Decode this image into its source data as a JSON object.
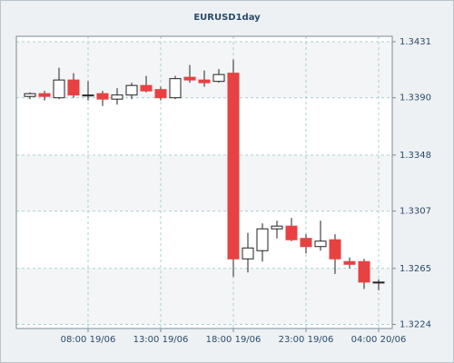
{
  "chart_data": {
    "type": "candlestick",
    "title": "EURUSD1day",
    "categories": [
      null,
      null,
      null,
      null,
      "08:00 19/06",
      null,
      null,
      null,
      null,
      "13:00 19/06",
      null,
      null,
      null,
      null,
      "18:00 19/06",
      null,
      null,
      null,
      null,
      "23:00 19/06",
      null,
      null,
      null,
      null,
      "04:00 20/06"
    ],
    "open": [
      1.3391,
      1.3393,
      1.339,
      1.3403,
      1.3392,
      1.3393,
      1.3389,
      1.3392,
      1.3399,
      1.3396,
      1.339,
      1.3405,
      1.3403,
      1.3402,
      1.3408,
      1.3272,
      1.3278,
      1.3294,
      1.3296,
      1.3287,
      1.3281,
      1.3286,
      1.327,
      1.327,
      1.3255
    ],
    "high": [
      1.3394,
      1.3395,
      1.3412,
      1.3408,
      1.3402,
      1.3395,
      1.3397,
      1.3401,
      1.3406,
      1.3398,
      1.3406,
      1.3414,
      1.341,
      1.3411,
      1.3418,
      1.3291,
      1.3298,
      1.33,
      1.3302,
      1.329,
      1.33,
      1.329,
      1.3273,
      1.3272,
      1.3257
    ],
    "low": [
      1.3389,
      1.3388,
      1.3389,
      1.339,
      1.3388,
      1.3384,
      1.3385,
      1.3389,
      1.3394,
      1.3388,
      1.3389,
      1.3401,
      1.3398,
      1.3401,
      1.3259,
      1.3262,
      1.327,
      1.3287,
      1.3285,
      1.3276,
      1.3278,
      1.3261,
      1.3265,
      1.325,
      1.3249
    ],
    "close": [
      1.3393,
      1.3391,
      1.3403,
      1.3392,
      1.3392,
      1.3389,
      1.3392,
      1.3399,
      1.3395,
      1.339,
      1.3404,
      1.3403,
      1.3401,
      1.3407,
      1.3272,
      1.328,
      1.3294,
      1.3296,
      1.3286,
      1.3281,
      1.3285,
      1.3272,
      1.3268,
      1.3255,
      1.3255
    ],
    "up_color": "#ffffff",
    "down_color": "#e84142",
    "ylim": [
      1.3221,
      1.3435
    ],
    "yticks": [
      1.3224,
      1.3265,
      1.3307,
      1.3348,
      {
        "value": 1.339,
        "label": "1.3390"
      },
      1.3431
    ],
    "grid": true
  }
}
